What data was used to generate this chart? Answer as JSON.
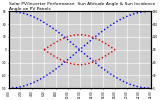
{
  "title": "Solar PV/Inverter Performance  Sun Altitude Angle & Sun Incidence Angle on PV Panels",
  "title_fontsize": 3.2,
  "background_color": "#ffffff",
  "plot_bg_color": "#d0d0d0",
  "grid_color": "#ffffff",
  "x_start": 0,
  "x_end": 24,
  "x_ticks": [
    0,
    2,
    4,
    6,
    8,
    10,
    12,
    14,
    16,
    18,
    20,
    22,
    24
  ],
  "x_tick_labels": [
    "0:00",
    "2:00",
    "4:00",
    "6:00",
    "8:00",
    "10:00",
    "12:00",
    "14:00",
    "16:00",
    "18:00",
    "20:00",
    "22:00",
    "24:00"
  ],
  "y_left_min": -90,
  "y_left_max": 90,
  "y_right_min": 0,
  "y_right_max": 180,
  "y_left_ticks": [
    -90,
    -60,
    -30,
    0,
    30,
    60,
    90
  ],
  "y_right_ticks": [
    0,
    30,
    60,
    90,
    120,
    150,
    180
  ],
  "blue_color": "#0000ff",
  "red_color": "#dd0000",
  "line_width": 1.0,
  "blue_amplitude": 90,
  "red_amplitude": 35,
  "red_x_start": 6,
  "red_x_end": 18
}
